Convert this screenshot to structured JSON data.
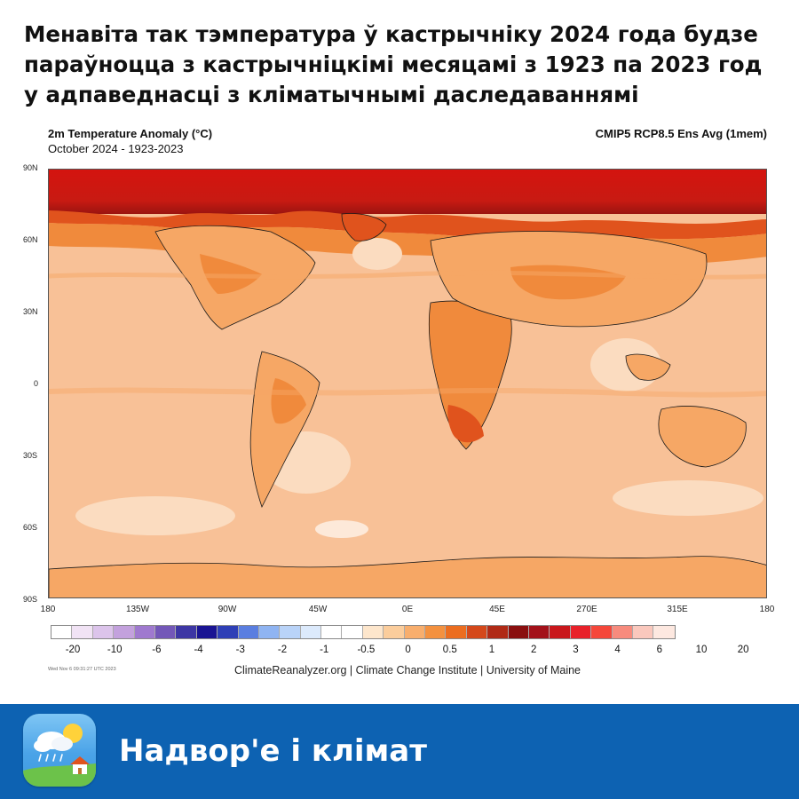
{
  "headline": "Менавіта так тэмпература ў кастрычніку 2024 года будзе параўноцца з кастрычніцкімі месяцамі з 1923 па 2023 год у адпаведнасці з кліматычнымі даследаваннямі",
  "map": {
    "title": "2m Temperature Anomaly (°C)",
    "subtitle": "October 2024 - 1923-2023",
    "model": "CMIP5 RCP8.5 Ens Avg (1mem)",
    "lat_labels": [
      "90N",
      "60N",
      "30N",
      "0",
      "30S",
      "60S",
      "90S"
    ],
    "lon_labels": [
      "180",
      "135W",
      "90W",
      "45W",
      "0E",
      "45E",
      "270E",
      "315E",
      "180"
    ],
    "colors": {
      "polar": "#cc1a10",
      "very_warm": "#e0531d",
      "warm": "#f08a3c",
      "mild": "#f6a765",
      "base": "#f8c197",
      "cool": "#fbdcc0",
      "land_outline": "#1a1a1a"
    }
  },
  "legend": {
    "labels": [
      "-20",
      "-10",
      "-6",
      "-4",
      "-3",
      "-2",
      "-1",
      "-0.5",
      "0",
      "0.5",
      "1",
      "2",
      "3",
      "4",
      "6",
      "10",
      "20"
    ],
    "colors": [
      "#ffffff",
      "#f1e3f5",
      "#dcc4eb",
      "#c3a1dd",
      "#9f79cf",
      "#7357b8",
      "#3d36a4",
      "#1a1493",
      "#2e3fb6",
      "#5a7ee0",
      "#8fb4f2",
      "#b9d3f8",
      "#dceafc",
      "#ffffff",
      "#ffffff",
      "#fde6cc",
      "#fbcd9c",
      "#f8ae6d",
      "#f4913f",
      "#ec6d1f",
      "#d4481a",
      "#b02a16",
      "#8a0f0f",
      "#a3111a",
      "#c9171c",
      "#e8212a",
      "#f5473a",
      "#f78b7d",
      "#fac8bd",
      "#fde8e0"
    ]
  },
  "timestamp": "Wed Nov 6 09:31:27 UTC 2023",
  "credits": "ClimateReanalyzer.org | Climate Change Institute | University of Maine",
  "footer": {
    "title": "Надвор'е і клімат",
    "icon": "weather-app-icon"
  }
}
